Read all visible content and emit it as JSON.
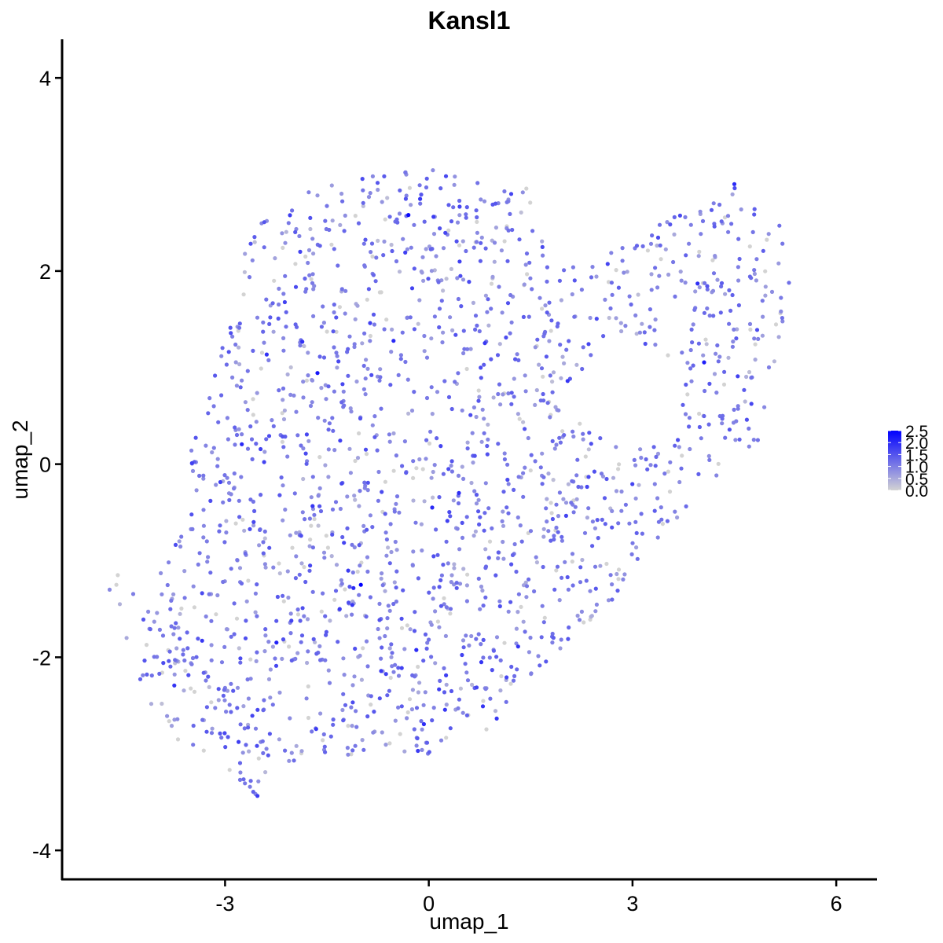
{
  "chart_data": {
    "type": "scatter",
    "title": "Kansl1",
    "xlabel": "umap_1",
    "ylabel": "umap_2",
    "xlim": [
      -5.4,
      6.6
    ],
    "ylim": [
      -4.3,
      4.4
    ],
    "x_ticks": [
      -3,
      0,
      3,
      6
    ],
    "y_ticks": [
      -4,
      -2,
      0,
      2,
      4
    ],
    "x_tick_labels": [
      "-3",
      "0",
      "3",
      "6"
    ],
    "y_tick_labels": [
      "-4",
      "-2",
      "0",
      "2",
      "4"
    ],
    "grid": false,
    "legend": {
      "placement": "right",
      "type": "colorbar",
      "min": 0,
      "max": 2.5,
      "ticks": [
        "0.0",
        "0.5",
        "1.0",
        "1.5",
        "2.0",
        "2.5"
      ],
      "low_color": "#d3d3d3",
      "high_color": "#0000ff"
    },
    "n_points": 1900,
    "seed": 20240607,
    "points_note": "Dense cloud of ~1900 cells forming a region spanning x ≈ -4.7 to 5.4 and y ≈ -3.5 to 3.1; most cells expression ~0.5–1.5, few at 0, a handful near 2.5.",
    "notable_points": [
      {
        "x": -0.3,
        "y": 2.58,
        "value": 2.4
      },
      {
        "x": -1.0,
        "y": -1.25,
        "value": 2.5
      },
      {
        "x": 0.05,
        "y": -0.45,
        "value": 2.0
      },
      {
        "x": 4.5,
        "y": 2.9,
        "value": 2.0
      }
    ]
  }
}
